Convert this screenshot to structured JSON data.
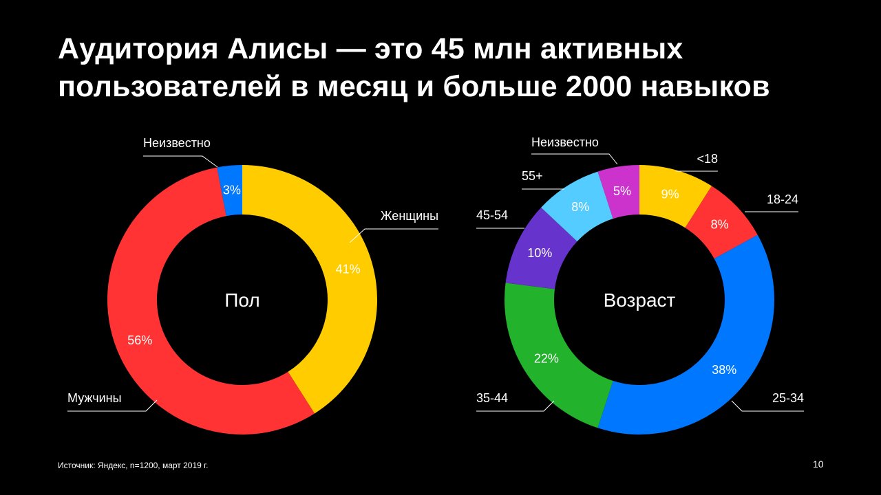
{
  "title": {
    "line1": "Аудитория Алисы — это 45 млн активных",
    "line2": "пользователей в месяц и больше 2000 навыков"
  },
  "chart_data": [
    {
      "type": "pie",
      "center_label": "Пол",
      "slices": [
        {
          "label": "Женщины",
          "value": 41,
          "display": "41%",
          "color": "#ffcc00"
        },
        {
          "label": "Мужчины",
          "value": 56,
          "display": "56%",
          "color": "#ff3333"
        },
        {
          "label": "Неизвестно",
          "value": 3,
          "display": "3%",
          "color": "#0077ff"
        }
      ]
    },
    {
      "type": "pie",
      "center_label": "Возраст",
      "slices": [
        {
          "label": "<18",
          "value": 9,
          "display": "9%",
          "color": "#ffcc00"
        },
        {
          "label": "18-24",
          "value": 8,
          "display": "8%",
          "color": "#ff3333"
        },
        {
          "label": "25-34",
          "value": 38,
          "display": "38%",
          "color": "#0077ff"
        },
        {
          "label": "35-44",
          "value": 22,
          "display": "22%",
          "color": "#22b22b"
        },
        {
          "label": "45-54",
          "value": 10,
          "display": "10%",
          "color": "#6633cc"
        },
        {
          "label": "55+",
          "value": 8,
          "display": "8%",
          "color": "#55ccff"
        },
        {
          "label": "Неизвестно",
          "value": 5,
          "display": "5%",
          "color": "#cc33cc"
        }
      ]
    }
  ],
  "footer": {
    "source": "Источник: Яндекс, n=1200, март 2019 г.",
    "page_number": "10"
  }
}
